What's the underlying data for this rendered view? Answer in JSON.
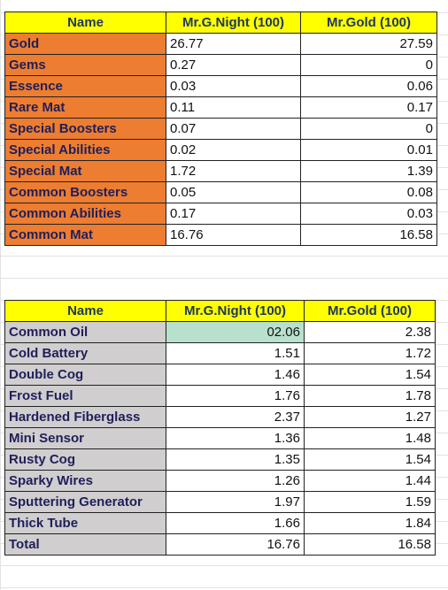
{
  "table1": {
    "headers": [
      "Name",
      "Mr.G.Night (100)",
      "Mr.Gold (100)"
    ],
    "rows": [
      [
        "Gold",
        "26.77",
        "27.59"
      ],
      [
        "Gems",
        "0.27",
        "0"
      ],
      [
        "Essence",
        "0.03",
        "0.06"
      ],
      [
        "Rare Mat",
        "0.11",
        "0.17"
      ],
      [
        "Special Boosters",
        "0.07",
        "0"
      ],
      [
        "Special Abilities",
        "0.02",
        "0.01"
      ],
      [
        "Special Mat",
        "1.72",
        "1.39"
      ],
      [
        "Common Boosters",
        "0.05",
        "0.08"
      ],
      [
        "Common Abilities",
        "0.17",
        "0.03"
      ],
      [
        "Common Mat",
        "16.76",
        "16.58"
      ]
    ]
  },
  "table2": {
    "headers": [
      "Name",
      "Mr.G.Night (100)",
      "Mr.Gold (100)"
    ],
    "rows": [
      [
        "Common Oil",
        "02.06",
        "2.38"
      ],
      [
        "Cold Battery",
        "1.51",
        "1.72"
      ],
      [
        "Double Cog",
        "1.46",
        "1.54"
      ],
      [
        "Frost Fuel",
        "1.76",
        "1.78"
      ],
      [
        "Hardened Fiberglass",
        "2.37",
        "1.27"
      ],
      [
        "Mini Sensor",
        "1.36",
        "1.48"
      ],
      [
        "Rusty Cog",
        "1.35",
        "1.54"
      ],
      [
        "Sparky Wires",
        "1.26",
        "1.44"
      ],
      [
        "Sputtering Generator",
        "1.97",
        "1.59"
      ],
      [
        "Thick Tube",
        "1.66",
        "1.84"
      ],
      [
        "Total",
        "16.76",
        "16.58"
      ]
    ]
  },
  "colors": {
    "header_fill": "#ffff00",
    "header_text": "#1f3864",
    "label_fill_table1": "#ed7d31",
    "label_fill_table2": "#d0cece",
    "selected_cell_fill": "#b7e1cd"
  }
}
